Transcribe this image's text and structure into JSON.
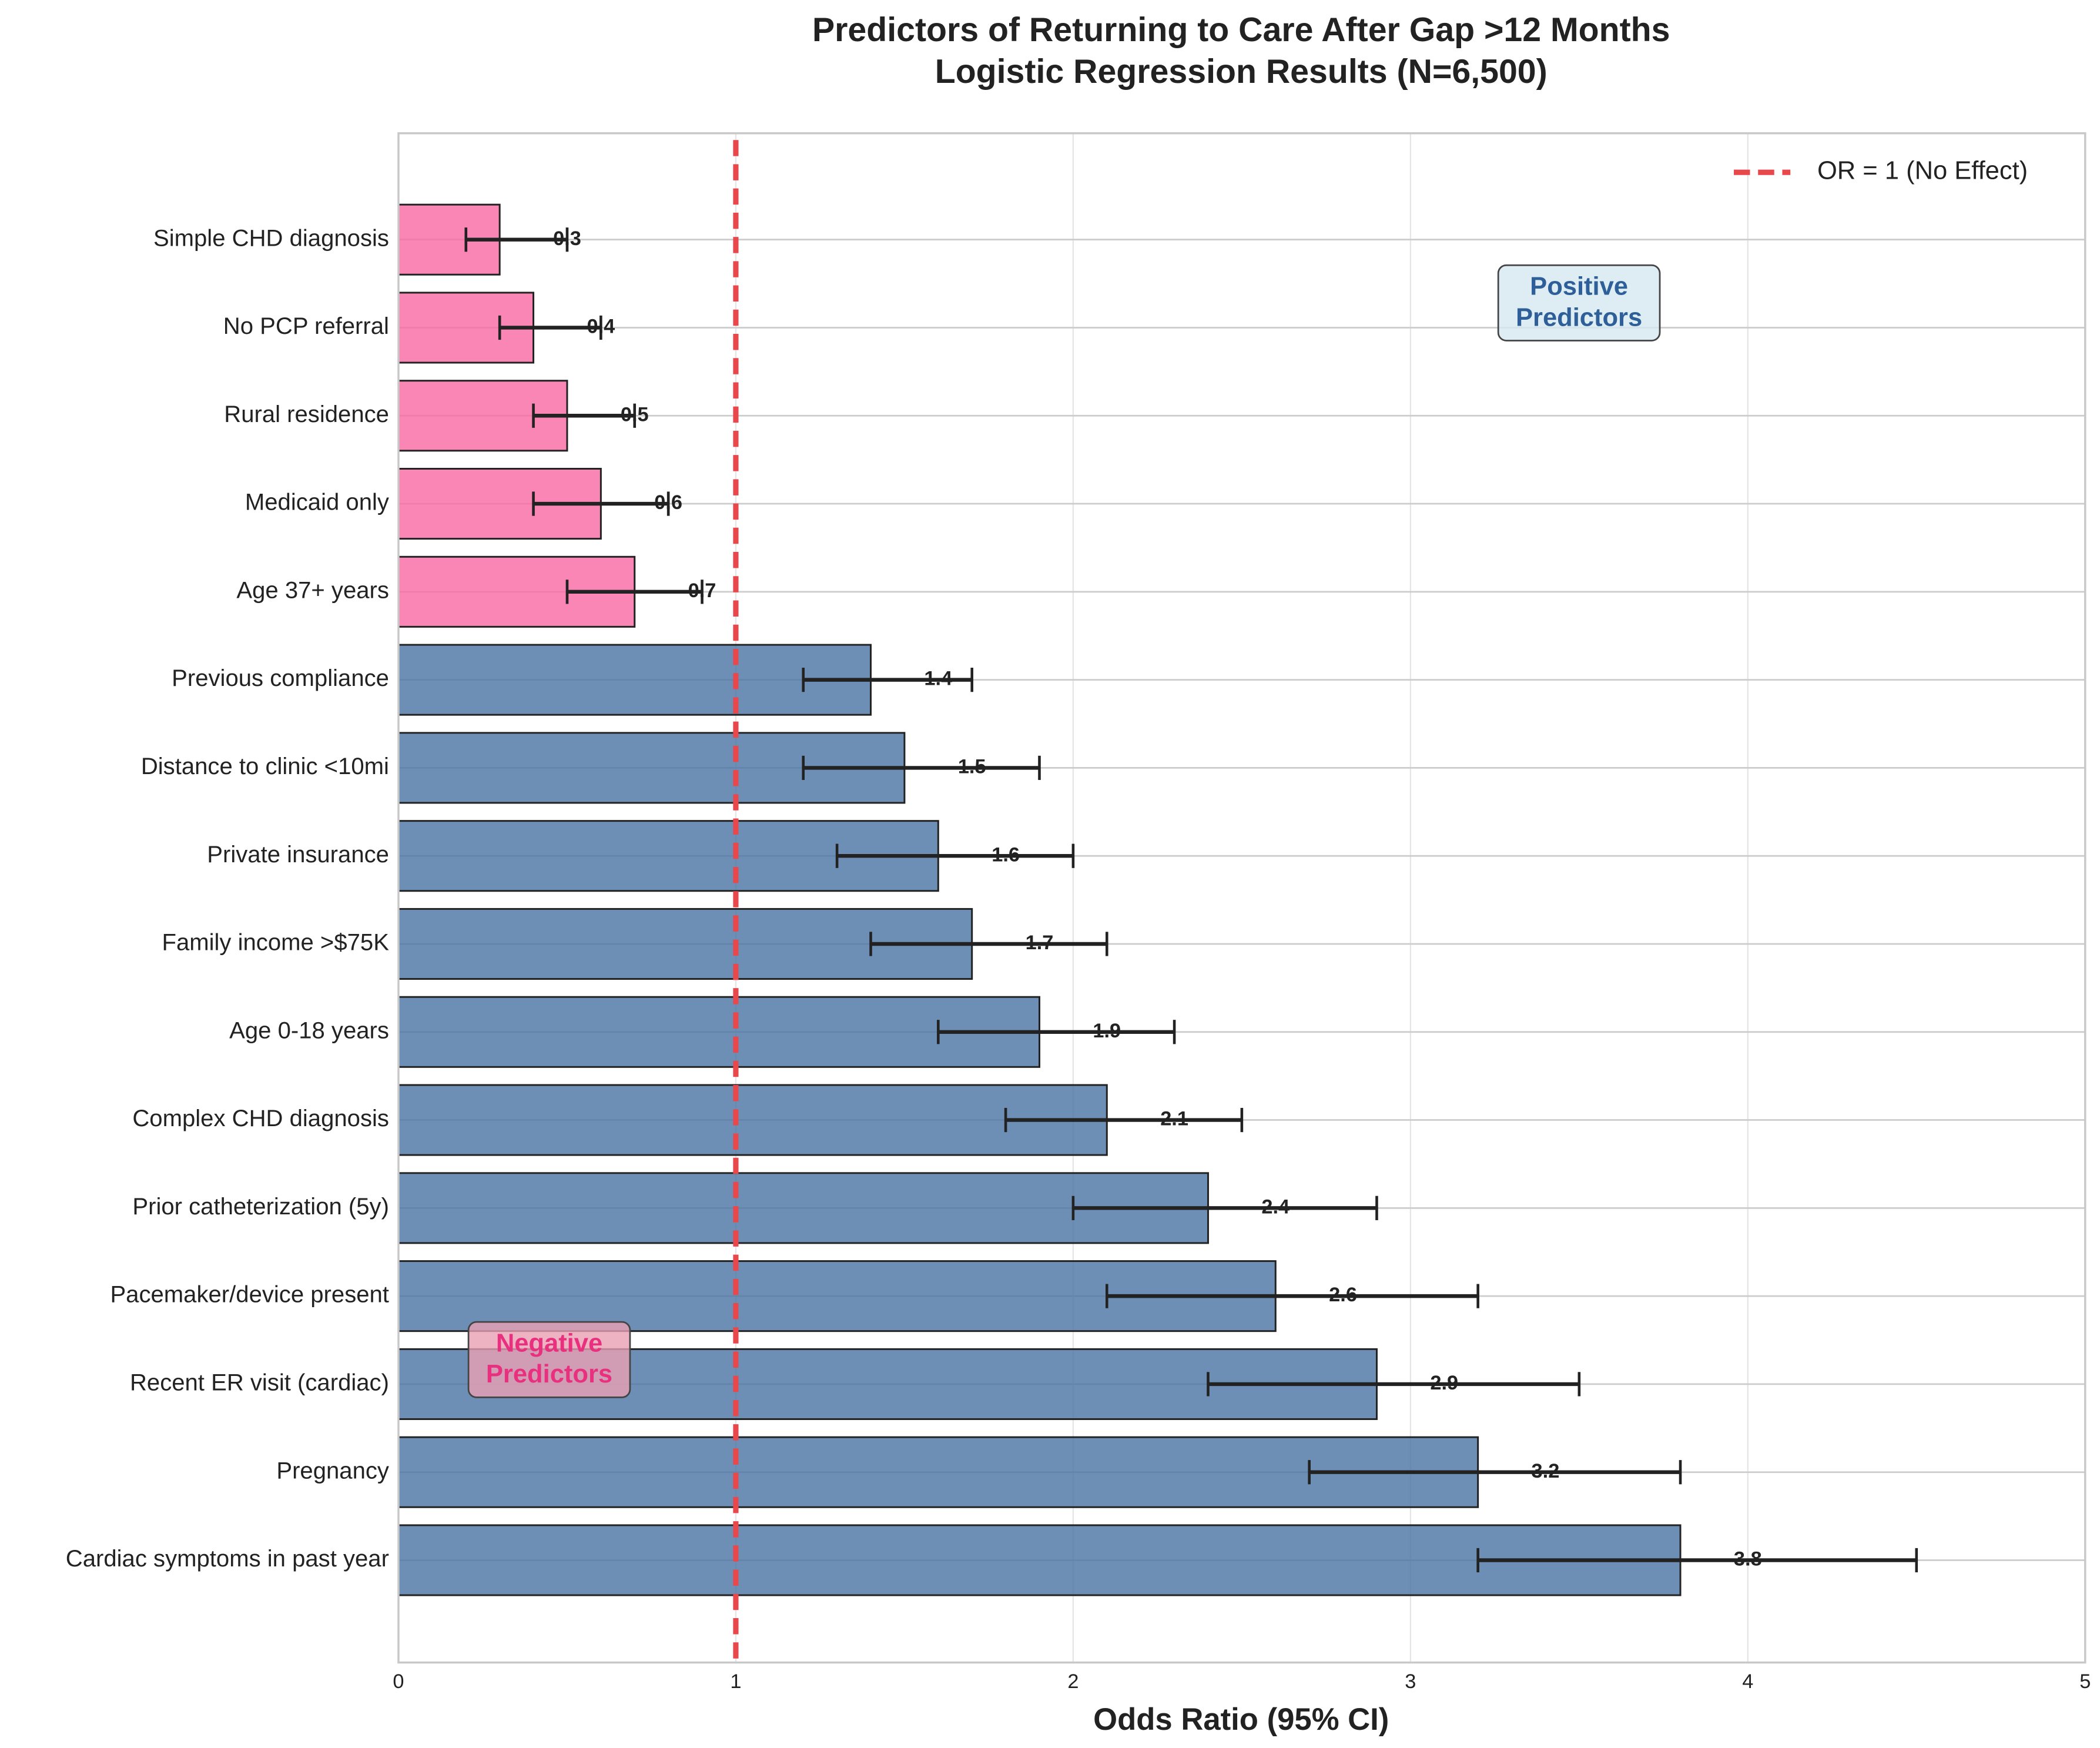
{
  "chart_data": {
    "type": "bar",
    "orientation": "horizontal",
    "title": "Predictors of Returning to Care After Gap >12 Months",
    "subtitle": "Logistic Regression Results (N=6,500)",
    "x_label": "Odds Ratio (95% CI)",
    "categories": [
      "Simple CHD diagnosis",
      "No PCP referral",
      "Rural residence",
      "Medicaid only",
      "Age 37+ years",
      "Previous compliance",
      "Distance to clinic <10mi",
      "Private insurance",
      "Family income >$75K",
      "Age 0-18 years",
      "Complex CHD diagnosis",
      "Prior catheterization (5y)",
      "Pacemaker/device present",
      "Recent ER visit (cardiac)",
      "Pregnancy",
      "Cardiac symptoms in past year"
    ],
    "values": [
      0.3,
      0.4,
      0.5,
      0.6,
      0.7,
      1.4,
      1.5,
      1.6,
      1.7,
      1.9,
      2.1,
      2.4,
      2.6,
      2.9,
      3.2,
      3.8
    ],
    "ci_lower": [
      0.2,
      0.3,
      0.4,
      0.4,
      0.5,
      1.2,
      1.2,
      1.3,
      1.4,
      1.6,
      1.8,
      2.0,
      2.1,
      2.4,
      2.7,
      3.2
    ],
    "ci_upper": [
      0.5,
      0.6,
      0.7,
      0.8,
      0.9,
      1.7,
      1.9,
      2.0,
      2.1,
      2.3,
      2.5,
      2.9,
      3.2,
      3.5,
      3.8,
      4.5
    ],
    "bar_colors": [
      "#f768a1",
      "#f768a1",
      "#f768a1",
      "#f768a1",
      "#f768a1",
      "#4a73a3",
      "#4a73a3",
      "#4a73a3",
      "#4a73a3",
      "#4a73a3",
      "#4a73a3",
      "#4a73a3",
      "#4a73a3",
      "#4a73a3",
      "#4a73a3",
      "#4a73a3"
    ],
    "xlim": [
      0,
      5
    ],
    "xticks": [
      0,
      1,
      2,
      3,
      4,
      5
    ],
    "grid": true,
    "reference_line": {
      "value": 1,
      "label": "OR = 1 (No Effect)",
      "color": "#e8474c"
    },
    "legend_position": "upper right",
    "annotations": [
      {
        "lines": [
          "Positive",
          "Predictors"
        ],
        "color": "#2e5f99",
        "box_color": "#d4e8f0"
      },
      {
        "lines": [
          "Negative",
          "Predictors"
        ],
        "color": "#e8307f",
        "box_color": "#e8a0b4"
      }
    ]
  }
}
